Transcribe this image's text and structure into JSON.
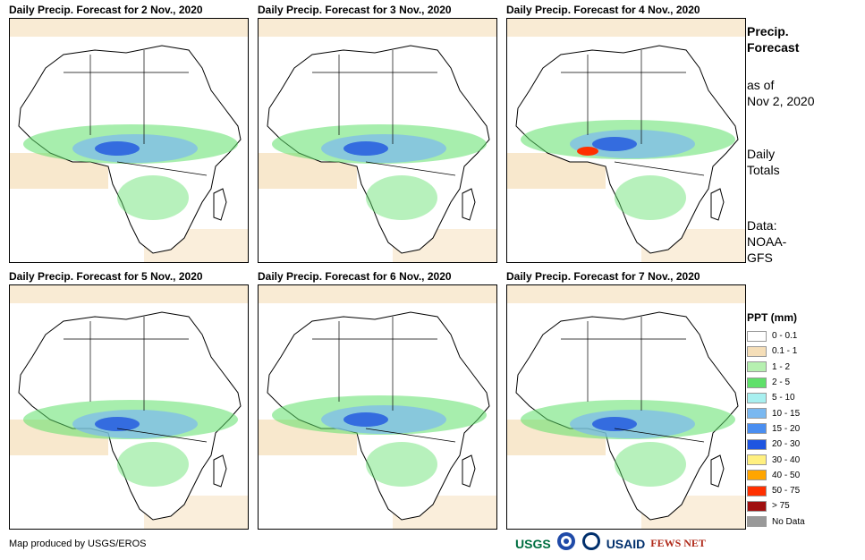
{
  "panels": [
    {
      "title": "Daily Precip. Forecast for 2 Nov., 2020"
    },
    {
      "title": "Daily Precip. Forecast for 3 Nov., 2020"
    },
    {
      "title": "Daily Precip. Forecast for 4 Nov., 2020"
    },
    {
      "title": "Daily Precip. Forecast for 5 Nov., 2020"
    },
    {
      "title": "Daily Precip. Forecast for 6 Nov., 2020"
    },
    {
      "title": "Daily Precip. Forecast for 7 Nov., 2020"
    }
  ],
  "side": {
    "heading_line1": "Precip.",
    "heading_line2": "Forecast",
    "asof_line1": "as of",
    "asof_line2": "Nov 2, 2020",
    "daily_line1": "Daily",
    "daily_line2": "Totals",
    "data_line1": "Data:",
    "data_line2": "NOAA-",
    "data_line3": "GFS"
  },
  "legend": {
    "title": "PPT (mm)",
    "items": [
      {
        "label": "0 - 0.1",
        "color": "#ffffff"
      },
      {
        "label": "0.1 - 1",
        "color": "#f5deb8"
      },
      {
        "label": "1 - 2",
        "color": "#b6f0b0"
      },
      {
        "label": "2 - 5",
        "color": "#5fe06a"
      },
      {
        "label": "5 - 10",
        "color": "#a8f0f0"
      },
      {
        "label": "10 - 15",
        "color": "#7ab8f0"
      },
      {
        "label": "15 - 20",
        "color": "#4a8ef0"
      },
      {
        "label": "20 - 30",
        "color": "#1f55e0"
      },
      {
        "label": "30 - 40",
        "color": "#fff080"
      },
      {
        "label": "40 - 50",
        "color": "#ffa500"
      },
      {
        "label": "50 - 75",
        "color": "#ff3000"
      },
      {
        "label": "> 75",
        "color": "#a01010"
      },
      {
        "label": "No Data",
        "color": "#999999"
      }
    ]
  },
  "credit": "Map produced by USGS/EROS",
  "logos": {
    "usgs": "USGS",
    "usaid": "USAID",
    "fewsnet": "FEWS NET"
  }
}
